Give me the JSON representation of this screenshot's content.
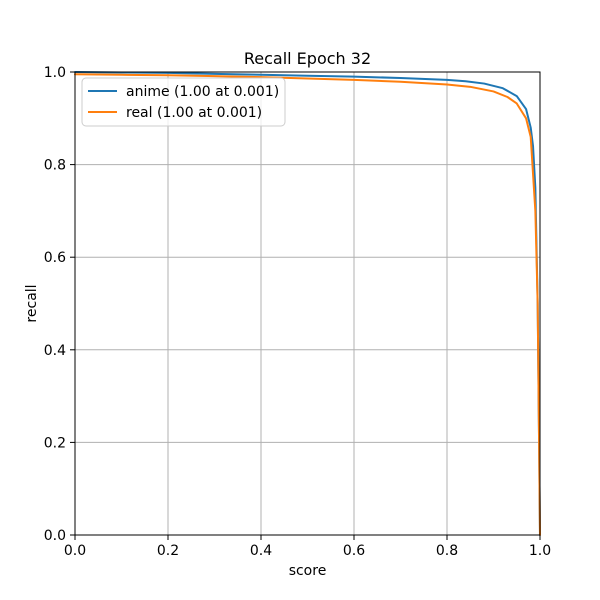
{
  "chart_data": {
    "type": "line",
    "title": "Recall Epoch 32",
    "xlabel": "score",
    "ylabel": "recall",
    "xlim": [
      0.0,
      1.0
    ],
    "ylim": [
      0.0,
      1.0
    ],
    "xticks": [
      0.0,
      0.2,
      0.4,
      0.6,
      0.8,
      1.0
    ],
    "yticks": [
      0.0,
      0.2,
      0.4,
      0.6,
      0.8,
      1.0
    ],
    "xtick_labels": [
      "0.0",
      "0.2",
      "0.4",
      "0.6",
      "0.8",
      "1.0"
    ],
    "ytick_labels": [
      "0.0",
      "0.2",
      "0.4",
      "0.6",
      "0.8",
      "1.0"
    ],
    "grid": true,
    "legend_position": "top-left",
    "series": [
      {
        "name": "anime (1.00 at 0.001)",
        "color": "#1f77b4",
        "x": [
          0.0,
          0.1,
          0.2,
          0.3,
          0.4,
          0.5,
          0.6,
          0.7,
          0.8,
          0.84,
          0.88,
          0.92,
          0.95,
          0.97,
          0.98,
          0.985,
          0.99,
          0.995,
          0.998,
          1.0
        ],
        "y": [
          1.0,
          0.999,
          0.998,
          0.996,
          0.994,
          0.992,
          0.99,
          0.987,
          0.983,
          0.98,
          0.975,
          0.965,
          0.948,
          0.92,
          0.88,
          0.84,
          0.75,
          0.5,
          0.2,
          0.0
        ]
      },
      {
        "name": "real (1.00 at 0.001)",
        "color": "#ff7f0e",
        "x": [
          0.0,
          0.1,
          0.2,
          0.3,
          0.4,
          0.5,
          0.6,
          0.7,
          0.8,
          0.85,
          0.9,
          0.93,
          0.95,
          0.97,
          0.98,
          0.99,
          0.995,
          0.998,
          1.0
        ],
        "y": [
          0.995,
          0.994,
          0.993,
          0.991,
          0.989,
          0.986,
          0.983,
          0.979,
          0.973,
          0.968,
          0.958,
          0.946,
          0.932,
          0.9,
          0.86,
          0.7,
          0.5,
          0.2,
          0.0
        ]
      }
    ]
  }
}
